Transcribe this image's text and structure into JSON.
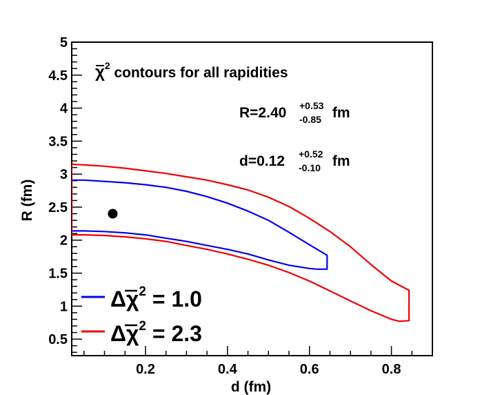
{
  "chart_data": {
    "type": "line",
    "title": "χ̄² contours for all rapidities",
    "xlabel": "d (fm)",
    "ylabel": "R (fm)",
    "xlim": [
      0.02,
      0.9
    ],
    "ylim": [
      0.25,
      5
    ],
    "grid": false,
    "x_ticks": [
      {
        "value": 0.2,
        "label": "0.2"
      },
      {
        "value": 0.4,
        "label": "0.4"
      },
      {
        "value": 0.6,
        "label": "0.6"
      },
      {
        "value": 0.8,
        "label": "0.8"
      }
    ],
    "y_ticks": [
      {
        "value": 0.5,
        "label": "0.5"
      },
      {
        "value": 1,
        "label": "1"
      },
      {
        "value": 1.5,
        "label": "1.5"
      },
      {
        "value": 2,
        "label": "2"
      },
      {
        "value": 2.5,
        "label": "2.5"
      },
      {
        "value": 3,
        "label": "3"
      },
      {
        "value": 3.5,
        "label": "3.5"
      },
      {
        "value": 4,
        "label": "4"
      },
      {
        "value": 4.5,
        "label": "4.5"
      },
      {
        "value": 5,
        "label": "5"
      }
    ],
    "best_fit": {
      "d": 0.12,
      "R": 2.4
    },
    "annotations": {
      "title_prefix": "χ",
      "title_sup": "2",
      "title_rest": " contours for all rapidities",
      "R_result": {
        "prefix": "R=2.40",
        "sup": "+0.53",
        "sub": "-0.85",
        "unit": " fm"
      },
      "d_result": {
        "prefix": "d=0.12",
        "sup": "+0.52",
        "sub": "-0.10",
        "unit": " fm"
      }
    },
    "series": [
      {
        "name": "Δχ̄² = 1.0",
        "legend_prefix": "Δχ",
        "legend_sup": "2",
        "legend_value": " = 1.0",
        "color": "#0000ee",
        "points": [
          [
            0.02,
            2.91
          ],
          [
            0.05,
            2.91
          ],
          [
            0.1,
            2.89
          ],
          [
            0.15,
            2.87
          ],
          [
            0.2,
            2.84
          ],
          [
            0.25,
            2.8
          ],
          [
            0.3,
            2.74
          ],
          [
            0.35,
            2.66
          ],
          [
            0.4,
            2.56
          ],
          [
            0.45,
            2.44
          ],
          [
            0.5,
            2.3
          ],
          [
            0.55,
            2.12
          ],
          [
            0.6,
            1.93
          ],
          [
            0.643,
            1.77
          ],
          [
            0.643,
            1.56
          ],
          [
            0.62,
            1.56
          ],
          [
            0.6,
            1.57
          ],
          [
            0.55,
            1.62
          ],
          [
            0.5,
            1.7
          ],
          [
            0.45,
            1.79
          ],
          [
            0.4,
            1.86
          ],
          [
            0.35,
            1.92
          ],
          [
            0.3,
            1.98
          ],
          [
            0.25,
            2.03
          ],
          [
            0.2,
            2.08
          ],
          [
            0.15,
            2.11
          ],
          [
            0.1,
            2.13
          ],
          [
            0.05,
            2.14
          ],
          [
            0.02,
            2.14
          ],
          [
            0.02,
            2.91
          ]
        ]
      },
      {
        "name": "Δχ̄² = 2.3",
        "legend_prefix": "Δχ",
        "legend_sup": "2",
        "legend_value": " = 2.3",
        "color": "#ee0000",
        "points": [
          [
            0.02,
            3.15
          ],
          [
            0.05,
            3.14
          ],
          [
            0.1,
            3.12
          ],
          [
            0.15,
            3.09
          ],
          [
            0.2,
            3.05
          ],
          [
            0.25,
            3.01
          ],
          [
            0.3,
            2.96
          ],
          [
            0.35,
            2.91
          ],
          [
            0.4,
            2.84
          ],
          [
            0.45,
            2.76
          ],
          [
            0.5,
            2.65
          ],
          [
            0.55,
            2.51
          ],
          [
            0.6,
            2.33
          ],
          [
            0.65,
            2.13
          ],
          [
            0.7,
            1.9
          ],
          [
            0.75,
            1.63
          ],
          [
            0.8,
            1.38
          ],
          [
            0.843,
            1.24
          ],
          [
            0.843,
            0.78
          ],
          [
            0.82,
            0.77
          ],
          [
            0.8,
            0.8
          ],
          [
            0.75,
            0.93
          ],
          [
            0.7,
            1.08
          ],
          [
            0.65,
            1.23
          ],
          [
            0.6,
            1.38
          ],
          [
            0.55,
            1.51
          ],
          [
            0.5,
            1.62
          ],
          [
            0.45,
            1.71
          ],
          [
            0.4,
            1.79
          ],
          [
            0.35,
            1.86
          ],
          [
            0.3,
            1.92
          ],
          [
            0.25,
            1.98
          ],
          [
            0.2,
            2.02
          ],
          [
            0.15,
            2.05
          ],
          [
            0.1,
            2.07
          ],
          [
            0.05,
            2.08
          ],
          [
            0.02,
            2.08
          ],
          [
            0.02,
            3.15
          ]
        ]
      }
    ]
  }
}
